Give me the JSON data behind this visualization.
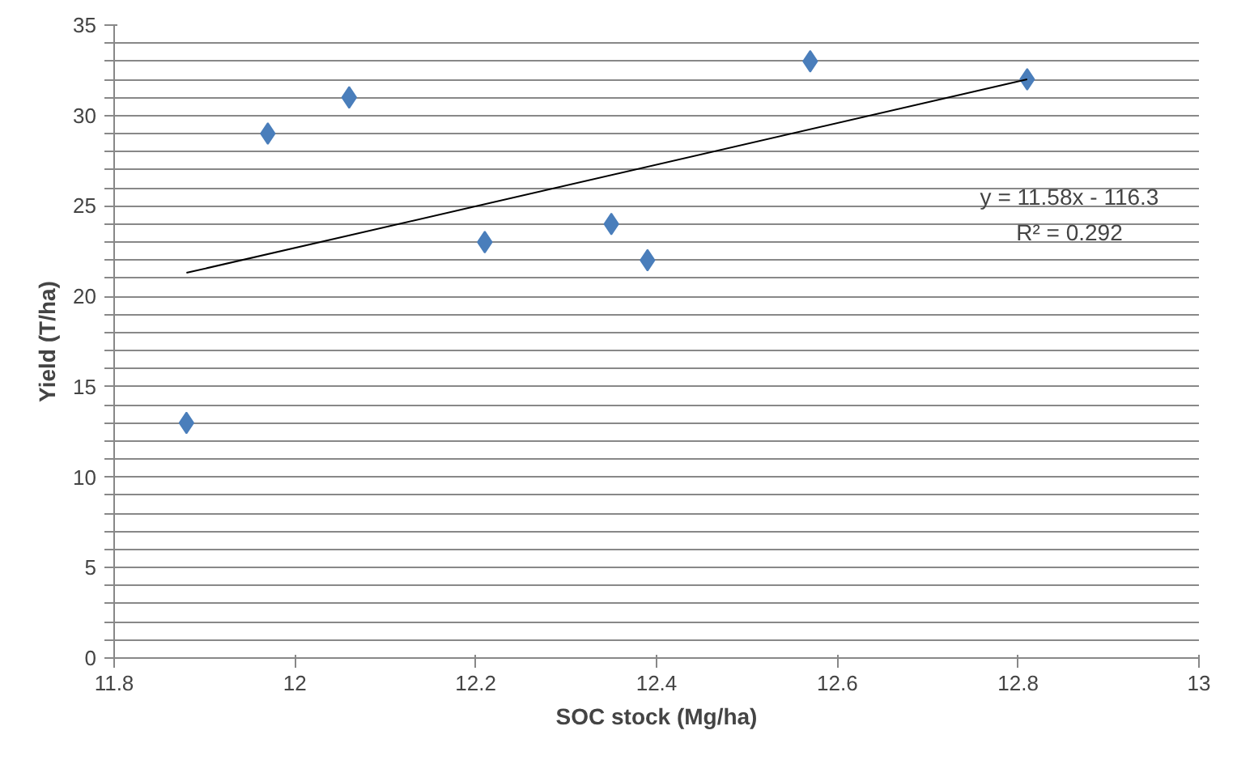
{
  "chart_data": {
    "type": "scatter",
    "xlabel": "SOC stock (Mg/ha)",
    "ylabel": "Yield (T/ha)",
    "x": [
      11.88,
      11.97,
      12.06,
      12.21,
      12.35,
      12.39,
      12.57,
      12.81
    ],
    "series": [
      {
        "color": "#4a7ebb",
        "marker": "diamond",
        "values": [
          13,
          29,
          31,
          23,
          24,
          22,
          33,
          32
        ]
      },
      {
        "type": "line",
        "color": "#000000",
        "x": [
          11.88,
          12.81
        ],
        "values": [
          21.3,
          32.0
        ]
      }
    ],
    "xlim": [
      11.8,
      13
    ],
    "ylim": [
      0,
      35
    ],
    "xticks": [
      11.8,
      12,
      12.2,
      12.4,
      12.6,
      12.8,
      13
    ],
    "yticks": [
      0,
      {
        "value": 1,
        "label": null
      },
      {
        "value": 2,
        "label": null
      },
      {
        "value": 3,
        "label": null
      },
      {
        "value": 4,
        "label": null
      },
      5,
      {
        "value": 6,
        "label": null
      },
      {
        "value": 7,
        "label": null
      },
      {
        "value": 8,
        "label": null
      },
      {
        "value": 9,
        "label": null
      },
      10,
      {
        "value": 11,
        "label": null
      },
      {
        "value": 12,
        "label": null
      },
      {
        "value": 13,
        "label": null
      },
      {
        "value": 14,
        "label": null
      },
      15,
      {
        "value": 16,
        "label": null
      },
      {
        "value": 17,
        "label": null
      },
      {
        "value": 18,
        "label": null
      },
      {
        "value": 19,
        "label": null
      },
      20,
      {
        "value": 21,
        "label": null
      },
      {
        "value": 22,
        "label": null
      },
      {
        "value": 23,
        "label": null
      },
      {
        "value": 24,
        "label": null
      },
      25,
      {
        "value": 26,
        "label": null
      },
      {
        "value": 27,
        "label": null
      },
      {
        "value": 28,
        "label": null
      },
      {
        "value": 29,
        "label": null
      },
      30,
      {
        "value": 31,
        "label": null
      },
      {
        "value": 32,
        "label": null
      },
      {
        "value": 33,
        "label": null
      },
      {
        "value": 34,
        "label": null
      },
      35
    ],
    "grid": "y",
    "annotations": [
      "y = 11.58x - 116.3",
      "R² = 0.292"
    ]
  }
}
